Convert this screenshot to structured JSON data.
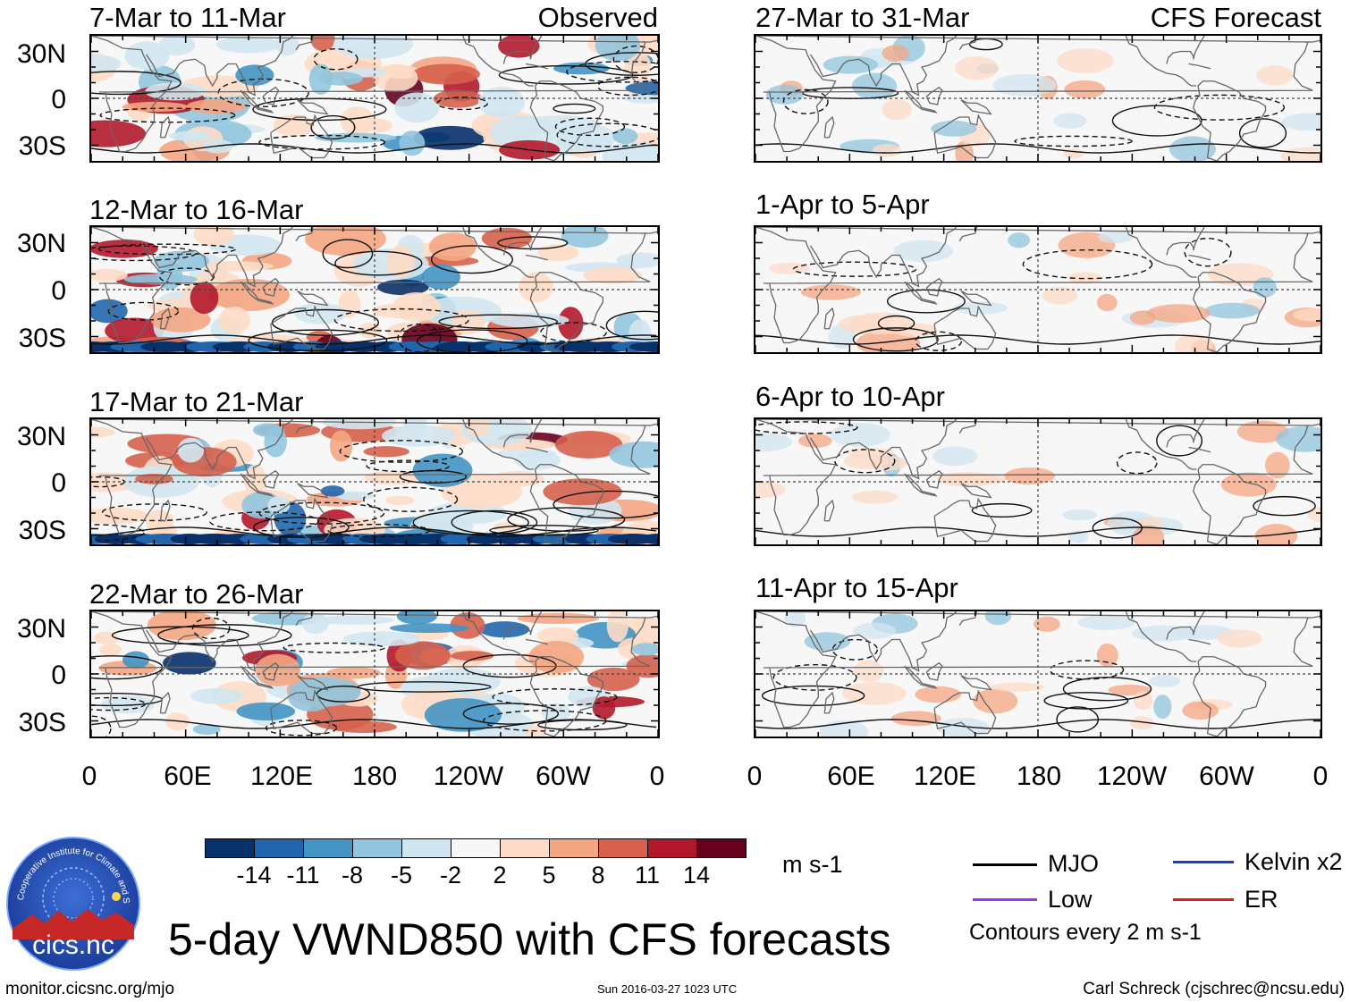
{
  "figure": {
    "title": "5-day VWND850 with CFS forecasts",
    "footer_left": "monitor.cicsnc.org/mjo",
    "footer_center": "Sun 2016-03-27 1023 UTC",
    "footer_right": "Carl Schreck (cjschrec@ncsu.edu)"
  },
  "logo": {
    "ring_text": "Cooperative Institute for Climate and Satellites",
    "name": "cics.nc"
  },
  "columns": {
    "left_label": "Observed",
    "right_label": "CFS Forecast"
  },
  "axes": {
    "lat_ticks": [
      "30N",
      "0",
      "30S"
    ],
    "lon_ticks": [
      "0",
      "60E",
      "120E",
      "180",
      "120W",
      "60W",
      "0"
    ]
  },
  "colorbar": {
    "unit": "m s-1",
    "colors": [
      "#08306b",
      "#2166ac",
      "#4393c3",
      "#92c5de",
      "#d1e5f0",
      "#f7f7f7",
      "#fddbc7",
      "#f4a582",
      "#d6604d",
      "#b2182b",
      "#67001f"
    ],
    "labels": [
      "-14",
      "-11",
      "-8",
      "-5",
      "-2",
      "2",
      "5",
      "8",
      "11",
      "14"
    ]
  },
  "legend": {
    "items": [
      {
        "label": "MJO",
        "color": "#000000"
      },
      {
        "label": "Kelvin x2",
        "color": "#1f3fbf"
      },
      {
        "label": "Low",
        "color": "#9b30ff"
      },
      {
        "label": "ER",
        "color": "#e31a1c"
      }
    ],
    "note": "Contours every 2 m s-1"
  },
  "chart_data": [
    {
      "type": "heatmap",
      "title": "7-Mar to 11-Mar",
      "column": "Observed",
      "variable": "VWND850",
      "units": "m s-1",
      "x": "longitude 0-360",
      "y": "latitude 40S-40N"
    },
    {
      "type": "heatmap",
      "title": "12-Mar to 16-Mar",
      "column": "Observed",
      "variable": "VWND850",
      "units": "m s-1"
    },
    {
      "type": "heatmap",
      "title": "17-Mar to 21-Mar",
      "column": "Observed",
      "variable": "VWND850",
      "units": "m s-1"
    },
    {
      "type": "heatmap",
      "title": "22-Mar to 26-Mar",
      "column": "Observed",
      "variable": "VWND850",
      "units": "m s-1"
    },
    {
      "type": "heatmap",
      "title": "27-Mar to 31-Mar",
      "column": "CFS Forecast",
      "variable": "VWND850",
      "units": "m s-1"
    },
    {
      "type": "heatmap",
      "title": "1-Apr to 5-Apr",
      "column": "CFS Forecast",
      "variable": "VWND850",
      "units": "m s-1"
    },
    {
      "type": "heatmap",
      "title": "6-Apr to 10-Apr",
      "column": "CFS Forecast",
      "variable": "VWND850",
      "units": "m s-1"
    },
    {
      "type": "heatmap",
      "title": "11-Apr to 15-Apr",
      "column": "CFS Forecast",
      "variable": "VWND850",
      "units": "m s-1"
    }
  ]
}
